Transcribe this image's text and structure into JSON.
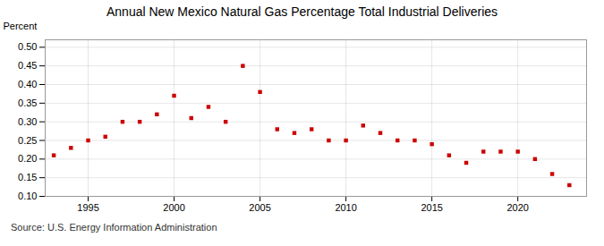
{
  "chart_data": {
    "type": "scatter",
    "title": "Annual New Mexico Natural Gas Percentage Total Industrial Deliveries",
    "ylabel": "Percent",
    "annotations": [
      "Source: U.S. Energy Information Administration"
    ],
    "x": [
      1993,
      1994,
      1995,
      1996,
      1997,
      1998,
      1999,
      2000,
      2001,
      2002,
      2003,
      2004,
      2005,
      2006,
      2007,
      2008,
      2009,
      2010,
      2011,
      2012,
      2013,
      2014,
      2015,
      2016,
      2017,
      2018,
      2019,
      2020,
      2021,
      2022,
      2023
    ],
    "values": [
      0.21,
      0.23,
      0.25,
      0.26,
      0.3,
      0.3,
      0.32,
      0.37,
      0.31,
      0.34,
      0.3,
      0.45,
      0.38,
      0.28,
      0.27,
      0.28,
      0.25,
      0.25,
      0.29,
      0.27,
      0.25,
      0.25,
      0.24,
      0.21,
      0.19,
      0.22,
      0.22,
      0.22,
      0.2,
      0.16,
      0.13
    ],
    "color": "#cc0000",
    "marker": "square",
    "xlim": [
      1992.5,
      2024
    ],
    "xticks": [
      1995,
      2000,
      2005,
      2010,
      2015,
      2020
    ],
    "ylim": [
      0.1,
      0.52
    ],
    "yticks": [
      {
        "value": 0.1,
        "label": "0.10"
      },
      0.15,
      {
        "value": 0.2,
        "label": "0.20"
      },
      0.25,
      {
        "value": 0.3,
        "label": "0.30"
      },
      0.35,
      {
        "value": 0.4,
        "label": "0.40"
      },
      0.45,
      {
        "value": 0.5,
        "label": "0.50"
      }
    ],
    "grid": true
  }
}
